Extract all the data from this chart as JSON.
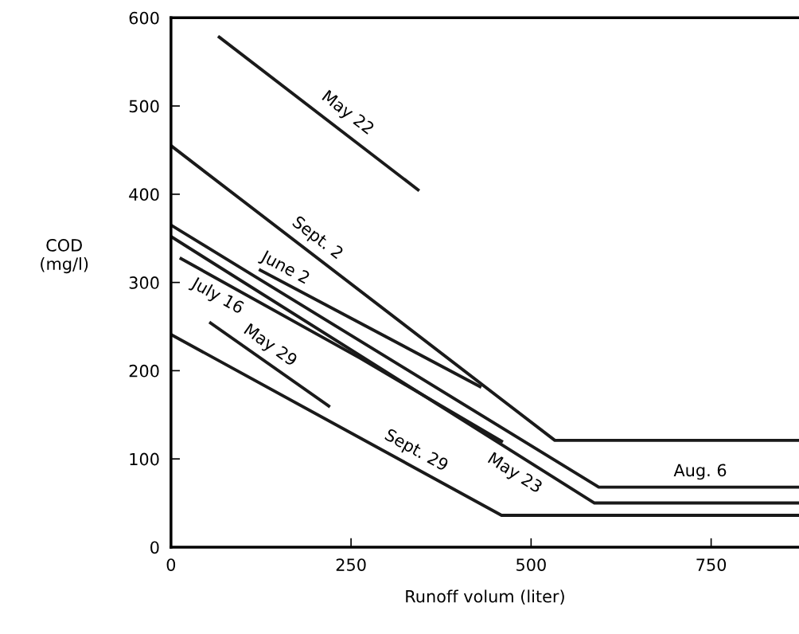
{
  "chart_data": {
    "type": "line",
    "xlabel": "Runoff volum (liter)",
    "ylabel": "COD\n(mg/l)",
    "xlim": [
      0,
      872
    ],
    "ylim": [
      0,
      600
    ],
    "xticks": [
      0,
      250,
      500,
      750
    ],
    "yticks": [
      0,
      100,
      200,
      300,
      400,
      500,
      600
    ],
    "grid": false,
    "legend": false,
    "marker": "none",
    "line_style": "solid",
    "series": [
      {
        "name": "May 22",
        "color": "#1a1a1a",
        "x": [
          67,
          343
        ],
        "values": [
          578,
          405
        ]
      },
      {
        "name": "Sept. 2",
        "color": "#1a1a1a",
        "x": [
          0,
          533,
          872
        ],
        "values": [
          455,
          121,
          121
        ]
      },
      {
        "name": "June 2",
        "color": "#1a1a1a",
        "x": [
          124,
          429
        ],
        "values": [
          314,
          182
        ]
      },
      {
        "name": "July 16",
        "color": "#1a1a1a",
        "x": [
          14,
          263,
          459
        ],
        "values": [
          327,
          214,
          120
        ]
      },
      {
        "name": "May 29",
        "color": "#1a1a1a",
        "x": [
          55,
          219
        ],
        "values": [
          254,
          160
        ]
      },
      {
        "name": "Sept. 29",
        "color": "#1a1a1a",
        "x": [
          0,
          459,
          872
        ],
        "values": [
          241,
          36,
          36
        ]
      },
      {
        "name": "May 23",
        "color": "#1a1a1a",
        "x": [
          0,
          588,
          872
        ],
        "values": [
          352,
          50,
          50
        ]
      },
      {
        "name": "Aug. 6",
        "color": "#1a1a1a",
        "x": [
          0,
          594,
          872
        ],
        "values": [
          365,
          68,
          68
        ]
      }
    ]
  }
}
